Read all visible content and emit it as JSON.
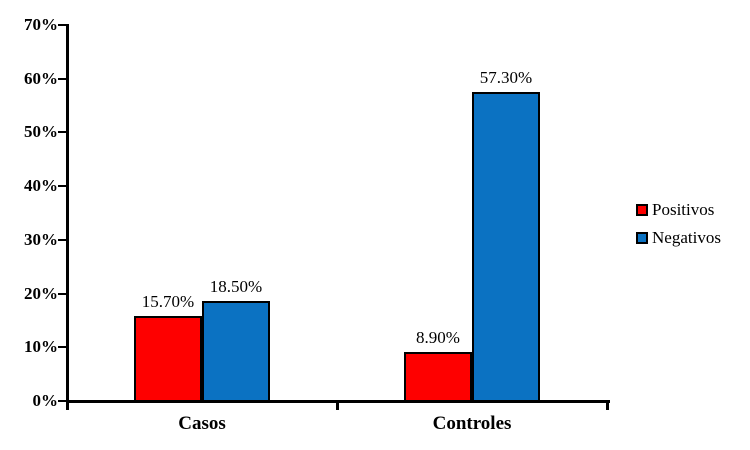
{
  "chart_data": {
    "type": "bar",
    "title": "",
    "xlabel": "",
    "ylabel": "",
    "categories": [
      "Casos",
      "Controles"
    ],
    "series": [
      {
        "name": "Positivos",
        "color": "#fe0000",
        "values": [
          15.7,
          8.9
        ],
        "value_labels": [
          "15.70%",
          "8.90%"
        ]
      },
      {
        "name": "Negativos",
        "color": "#0b72c2",
        "values": [
          18.5,
          57.3
        ],
        "value_labels": [
          "18.50%",
          "57.30%"
        ]
      }
    ],
    "ylim": [
      0,
      70
    ],
    "ytick_step": 10,
    "ytick_labels": [
      "0%",
      "10%",
      "20%",
      "30%",
      "40%",
      "50%",
      "60%",
      "70%"
    ],
    "grid": false,
    "legend_position": "right",
    "axis_color": "#000000",
    "bar_border_color": "#000000",
    "background_color": "#ffffff"
  }
}
